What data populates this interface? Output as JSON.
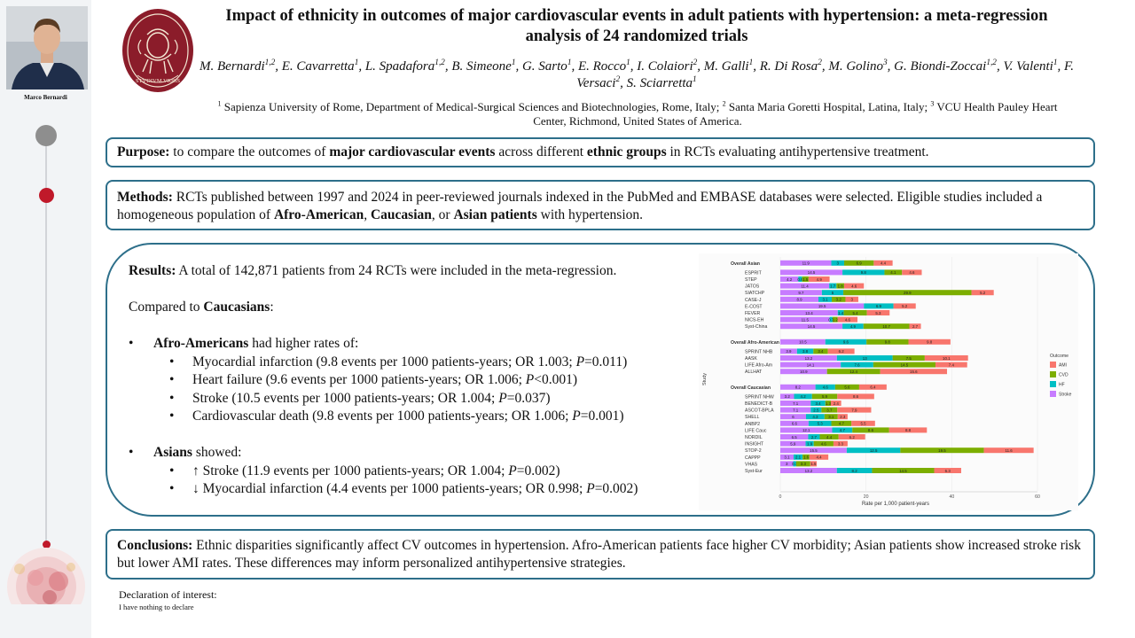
{
  "presenter": {
    "name": "Marco Bernardi"
  },
  "logo": {
    "lettering": "STVDIVM VRBIS"
  },
  "title": "Impact of ethnicity in outcomes of major cardiovascular events in adult patients with hypertension: a meta-regression analysis of 24 randomized trials",
  "authors": [
    {
      "name": "M. Bernardi",
      "aff": "1,2",
      "sep": ", "
    },
    {
      "name": "E. Cavarretta",
      "aff": "1",
      "sep": ", "
    },
    {
      "name": "L. Spadafora",
      "aff": "1,2",
      "sep": ", "
    },
    {
      "name": "B. Simeone",
      "aff": "1",
      "sep": ", "
    },
    {
      "name": "G. Sarto",
      "aff": "1",
      "sep": ", "
    },
    {
      "name": "E. Rocco",
      "aff": "1",
      "sep": ", "
    },
    {
      "name": "I. Colaiori",
      "aff": "2",
      "sep": ", "
    },
    {
      "name": "M. Galli",
      "aff": "1",
      "sep": ", "
    },
    {
      "name": "R. Di Rosa",
      "aff": "2",
      "sep": ", "
    },
    {
      "name": "M. Golino",
      "aff": "3",
      "sep": ", "
    },
    {
      "name": "G. Biondi-Zoccai",
      "aff": "1,2",
      "sep": ", "
    },
    {
      "name": "V. Valenti",
      "aff": "1",
      "sep": ", "
    },
    {
      "name": "F. Versaci",
      "aff": "2",
      "sep": ", "
    },
    {
      "name": "S. Sciarretta",
      "aff": "1",
      "sep": ""
    }
  ],
  "affiliations": [
    {
      "num": "1",
      "text": "Sapienza University of Rome, Department of Medical-Surgical Sciences and Biotechnologies, Rome, Italy;"
    },
    {
      "num": "2",
      "text": "Santa Maria Goretti Hospital, Latina, Italy;"
    },
    {
      "num": "3",
      "text": "VCU Health Pauley Heart Center, Richmond, United States of America."
    }
  ],
  "purpose": {
    "label": "Purpose:",
    "t1": " to compare the outcomes of ",
    "b1": "major cardiovascular events",
    "t2": " across different ",
    "b2": "ethnic groups",
    "t3": " in RCTs evaluating antihypertensive treatment."
  },
  "methods": {
    "label": "Methods:",
    "t1": " RCTs published between 1997 and 2024 in peer-reviewed journals indexed in the PubMed and EMBASE databases were selected. Eligible studies included a homogeneous population of ",
    "b1": "Afro-American",
    "t2": ", ",
    "b2": "Caucasian",
    "t3": ", or ",
    "b3": "Asian patients",
    "t4": " with hypertension."
  },
  "results": {
    "label": "Results:",
    "intro": " A total of 142,871 patients from 24 RCTs were included in the meta-regression.",
    "compared_pre": "Compared to ",
    "compared_bold": "Caucasians",
    "compared_post": ":",
    "afro_bold": "Afro-Americans",
    "afro_rest": " had higher rates of:",
    "afro_items": [
      {
        "pre": "Myocardial infarction (9.8 events per 1000 patients-years; OR 1.003; ",
        "p": "P",
        "post": "=0.011)"
      },
      {
        "pre": "Heart failure (9.6 events per 1000 patients-years; OR 1.006; ",
        "p": "P",
        "post": "<0.001)"
      },
      {
        "pre": "Stroke (10.5 events per 1000 patients-years; OR 1.004; ",
        "p": "P",
        "post": "=0.037)"
      },
      {
        "pre": "Cardiovascular death (9.8 events per 1000 patients-years; OR 1.006; ",
        "p": "P",
        "post": "=0.001)"
      }
    ],
    "asian_bold": "Asians",
    "asian_rest": " showed:",
    "asian_items": [
      {
        "arrow": "↑",
        "pre": " Stroke (11.9 events per 1000 patients-years; OR 1.004; ",
        "p": "P",
        "post": "=0.002)"
      },
      {
        "arrow": "↓",
        "pre": " Myocardial infarction (4.4 events per 1000 patients-years; OR 0.998; ",
        "p": "P",
        "post": "=0.002)"
      }
    ]
  },
  "conclusions": {
    "label": "Conclusions:",
    "text": " Ethnic disparities significantly affect CV outcomes in hypertension. Afro-American patients face higher CV morbidity; Asian patients show increased stroke risk but lower AMI rates. These differences may inform personalized antihypertensive strategies."
  },
  "declaration": {
    "title": "Declaration of interest:",
    "text": "I have nothing to declare"
  },
  "colors": {
    "box_border": "#2d6f8a",
    "accent_red": "#c0192a",
    "stroke": "#c77cff",
    "hf": "#00bfc4",
    "cvd": "#7cae00",
    "ami": "#f8766d"
  },
  "chart_data": {
    "type": "bar",
    "orientation": "horizontal",
    "stacked": true,
    "xlabel": "Rate per 1,000 patient-years",
    "ylabel": "Study",
    "xlim": [
      0,
      60
    ],
    "xticks": [
      0,
      20,
      40,
      60
    ],
    "legend": {
      "title": "Outcome",
      "position": "right",
      "entries": [
        "AMI",
        "CVD",
        "HF",
        "Stroke"
      ]
    },
    "series_order": [
      "Stroke",
      "HF",
      "CVD",
      "AMI"
    ],
    "groups": [
      {
        "label": "Overall Asian",
        "bold": true,
        "values": [
          11.9,
          3.0,
          6.9,
          4.4
        ]
      },
      {
        "label": "ESPRIT",
        "values": [
          14.5,
          9.8,
          4.1,
          4.6
        ]
      },
      {
        "label": "STEP",
        "values": [
          4.2,
          0.9,
          1.5,
          4.9
        ]
      },
      {
        "label": "JATOS",
        "values": [
          11.4,
          1.7,
          1.8,
          4.6
        ]
      },
      {
        "label": "SIATCHP",
        "values": [
          9.7,
          5.0,
          29.9,
          5.2
        ]
      },
      {
        "label": "CASE-J",
        "values": [
          8.9,
          3.1,
          3.2,
          3.0
        ]
      },
      {
        "label": "E-COST",
        "values": [
          19.5,
          6.9,
          0,
          5.2
        ]
      },
      {
        "label": "FEVER",
        "values": [
          13.4,
          1.4,
          5.4,
          5.3
        ]
      },
      {
        "label": "NICS-EH",
        "values": [
          11.5,
          0.7,
          1.2,
          4.6
        ]
      },
      {
        "label": "Syst-China",
        "values": [
          14.5,
          4.9,
          10.7,
          2.7
        ]
      },
      {
        "label": "Overall Afro-American",
        "bold": true,
        "values": [
          10.5,
          9.6,
          9.8,
          9.8
        ]
      },
      {
        "label": "SPRINT NHB",
        "values": [
          3.9,
          3.8,
          3.4,
          6.2
        ]
      },
      {
        "label": "AASK",
        "values": [
          13.2,
          13,
          7.5,
          10.1
        ]
      },
      {
        "label": "LIFE Afro-Am",
        "values": [
          14.1,
          7.6,
          14.5,
          7.4
        ]
      },
      {
        "label": "ALLHAT",
        "values": [
          10.9,
          0,
          12.4,
          15.6
        ]
      },
      {
        "label": "Overall Caucasian",
        "bold": true,
        "values": [
          8.2,
          4.6,
          5.6,
          6.4
        ]
      },
      {
        "label": "SPRINT NHW",
        "values": [
          3.2,
          4.2,
          5.9,
          8.6
        ]
      },
      {
        "label": "BENEDICT-B",
        "values": [
          7.1,
          3.4,
          1.3,
          2.4
        ]
      },
      {
        "label": "ASCOT-BPLA",
        "values": [
          7.1,
          2.5,
          3.7,
          7.9
        ]
      },
      {
        "label": "SHELL",
        "values": [
          6,
          4.3,
          3.1,
          2.3
        ]
      },
      {
        "label": "ANBP2",
        "values": [
          6.6,
          5.3,
          4.7,
          5.5
        ]
      },
      {
        "label": "LIFE Cauc",
        "values": [
          12.1,
          4.7,
          8.6,
          8.8
        ]
      },
      {
        "label": "NORDIL",
        "values": [
          6.5,
          2.7,
          4.4,
          6.2
        ]
      },
      {
        "label": "INSIGHT",
        "values": [
          5.9,
          1.9,
          4.6,
          3.3
        ]
      },
      {
        "label": "STOP-2",
        "values": [
          15.5,
          12.5,
          19.5,
          11.6
        ]
      },
      {
        "label": "CAPPP",
        "values": [
          3.1,
          2.1,
          1.6,
          4.4
        ]
      },
      {
        "label": "VHAS",
        "values": [
          3.0,
          0.7,
          3.3,
          1.5
        ]
      },
      {
        "label": "Syst-Eur",
        "values": [
          13.2,
          8.2,
          14.5,
          6.3
        ]
      }
    ]
  }
}
